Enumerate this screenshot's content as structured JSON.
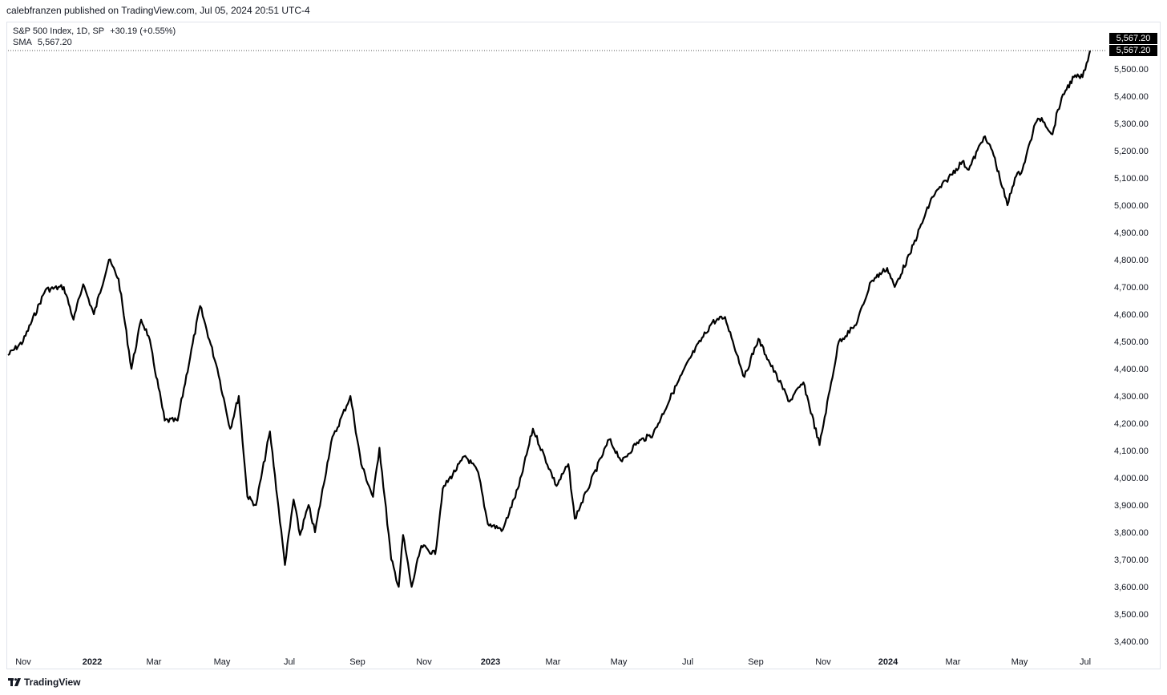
{
  "publisher_line": "calebfranzen published on TradingView.com, Jul 05, 2024 20:51 UTC-4",
  "legend": {
    "symbol": "S&P 500 Index, 1D, SP",
    "change": "+30.19 (+0.55%)",
    "indicator_name": "SMA",
    "indicator_value": "5,567.20"
  },
  "price_tags": [
    "5,567.20",
    "5,567.20"
  ],
  "footer": {
    "brand": "TradingView",
    "logo_icon": "tradingview-logo-icon"
  },
  "colors": {
    "line": "#000000",
    "axis_text": "#131722",
    "dotted_line": "#555555",
    "tag_bg": "#000000"
  },
  "chart_data": {
    "type": "line",
    "title": "S&P 500 Index, 1D, SP",
    "xlabel": "",
    "ylabel": "",
    "grid": false,
    "ylim": [
      3350,
      5630
    ],
    "x_tick_labels": [
      "Nov",
      "2022",
      "Mar",
      "May",
      "Jul",
      "Sep",
      "Nov",
      "2023",
      "Mar",
      "May",
      "Jul",
      "Sep",
      "Nov",
      "2024",
      "Mar",
      "May",
      "Jul"
    ],
    "x_tick_bold": [
      false,
      true,
      false,
      false,
      false,
      false,
      false,
      true,
      false,
      false,
      false,
      false,
      false,
      true,
      false,
      false,
      false
    ],
    "y_ticks": [
      3400,
      3500,
      3600,
      3700,
      3800,
      3900,
      4000,
      4100,
      4200,
      4300,
      4400,
      4500,
      4600,
      4700,
      4800,
      4900,
      5000,
      5100,
      5200,
      5300,
      5400,
      5500
    ],
    "y_tick_labels": [
      "3,400.00",
      "3,500.00",
      "3,600.00",
      "3,700.00",
      "3,800.00",
      "3,900.00",
      "4,000.00",
      "4,100.00",
      "4,200.00",
      "4,300.00",
      "4,400.00",
      "4,500.00",
      "4,600.00",
      "4,700.00",
      "4,800.00",
      "4,900.00",
      "5,000.00",
      "5,100.00",
      "5,200.00",
      "5,300.00",
      "5,400.00",
      "5,500.00"
    ],
    "last_value": 5567.2,
    "series": [
      {
        "name": "S&P 500 Index",
        "x": [
          "2021-10-01",
          "2021-10-15",
          "2021-11-05",
          "2021-11-22",
          "2021-12-01",
          "2021-12-10",
          "2021-12-20",
          "2022-01-03",
          "2022-01-12",
          "2022-01-24",
          "2022-02-02",
          "2022-02-09",
          "2022-02-24",
          "2022-03-08",
          "2022-03-29",
          "2022-04-14",
          "2022-04-26",
          "2022-05-04",
          "2022-05-12",
          "2022-05-20",
          "2022-06-02",
          "2022-06-16",
          "2022-06-24",
          "2022-06-30",
          "2022-07-08",
          "2022-07-14",
          "2022-07-29",
          "2022-08-16",
          "2022-08-26",
          "2022-09-06",
          "2022-09-12",
          "2022-09-23",
          "2022-09-30",
          "2022-10-04",
          "2022-10-12",
          "2022-10-21",
          "2022-11-03",
          "2022-11-10",
          "2022-12-01",
          "2022-12-13",
          "2022-12-22",
          "2023-01-05",
          "2023-01-20",
          "2023-02-02",
          "2023-02-24",
          "2023-03-07",
          "2023-03-13",
          "2023-03-24",
          "2023-04-14",
          "2023-04-26",
          "2023-05-10",
          "2023-05-25",
          "2023-06-12",
          "2023-06-30",
          "2023-07-19",
          "2023-07-31",
          "2023-08-18",
          "2023-08-31",
          "2023-09-07",
          "2023-09-29",
          "2023-10-12",
          "2023-10-27",
          "2023-11-14",
          "2023-11-30",
          "2023-12-14",
          "2023-12-29",
          "2024-01-05",
          "2024-01-19",
          "2024-02-09",
          "2024-02-22",
          "2024-03-08",
          "2024-03-14",
          "2024-03-28",
          "2024-04-05",
          "2024-04-19",
          "2024-04-26",
          "2024-05-03",
          "2024-05-15",
          "2024-05-21",
          "2024-05-31",
          "2024-06-05",
          "2024-06-12",
          "2024-06-20",
          "2024-06-28",
          "2024-07-03",
          "2024-07-05"
        ],
        "values": [
          4450,
          4500,
          4690,
          4700,
          4580,
          4710,
          4600,
          4800,
          4730,
          4400,
          4580,
          4520,
          4210,
          4210,
          4630,
          4400,
          4180,
          4300,
          3930,
          3900,
          4170,
          3680,
          3920,
          3790,
          3900,
          3800,
          4130,
          4300,
          4050,
          3930,
          4110,
          3700,
          3600,
          3790,
          3600,
          3750,
          3720,
          3960,
          4080,
          4020,
          3830,
          3810,
          3970,
          4180,
          3970,
          4050,
          3850,
          3950,
          4140,
          4060,
          4130,
          4160,
          4310,
          4450,
          4570,
          4590,
          4370,
          4510,
          4450,
          4280,
          4350,
          4120,
          4500,
          4560,
          4720,
          4770,
          4700,
          4820,
          5030,
          5090,
          5160,
          5130,
          5250,
          5200,
          5000,
          5100,
          5130,
          5300,
          5320,
          5260,
          5350,
          5420,
          5470,
          5470,
          5530,
          5567.2
        ]
      }
    ]
  }
}
